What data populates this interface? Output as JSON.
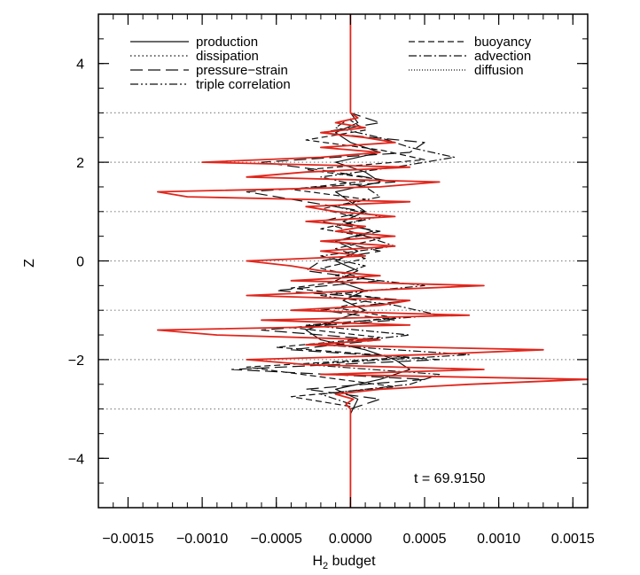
{
  "chart_data": {
    "type": "line",
    "title": "",
    "xlabel": "H",
    "xlabel_sub": "2",
    "xlabel_rest": " budget",
    "ylabel": "Z",
    "xlim": [
      -0.0017,
      0.0016
    ],
    "ylim": [
      -5,
      5
    ],
    "x_ticks": [
      -0.0015,
      -0.001,
      -0.0005,
      0.0,
      0.0005,
      0.001,
      0.0015
    ],
    "x_tick_labels": [
      "−0.0015",
      "−0.0010",
      "−0.0005",
      "0.0000",
      "0.0005",
      "0.0010",
      "0.0015"
    ],
    "y_ticks": [
      -4,
      -2,
      0,
      2,
      4
    ],
    "y_tick_labels": [
      "−4",
      "−2",
      "0",
      "2",
      "4"
    ],
    "reference_lines_z": [
      -3,
      -2,
      -1,
      0,
      1,
      2,
      3
    ],
    "annotation": "t  =  69.9150",
    "legend_placement": "top",
    "legend": {
      "left": [
        {
          "label": "production",
          "dash": "solid"
        },
        {
          "label": "dissipation",
          "dash": "dotted"
        },
        {
          "label": "pressure−strain",
          "dash": "longdash"
        },
        {
          "label": "triple correlation",
          "dash": "dashdotdot"
        }
      ],
      "right": [
        {
          "label": "buoyancy",
          "dash": "dashed"
        },
        {
          "label": "advection",
          "dash": "dashdot"
        },
        {
          "label": "diffusion",
          "dash": "finedot"
        }
      ]
    },
    "total_color": "#e0261c",
    "total_series": {
      "name": "",
      "z": [
        -5.0,
        -3.0,
        -2.9,
        -2.8,
        -2.7,
        -2.6,
        -2.5,
        -2.4,
        -2.3,
        -2.2,
        -2.1,
        -2.0,
        -1.9,
        -1.8,
        -1.7,
        -1.6,
        -1.5,
        -1.4,
        -1.3,
        -1.2,
        -1.1,
        -1.0,
        -0.9,
        -0.8,
        -0.7,
        -0.6,
        -0.5,
        -0.4,
        -0.3,
        -0.2,
        -0.1,
        0.0,
        0.1,
        0.2,
        0.3,
        0.4,
        0.5,
        0.6,
        0.7,
        0.8,
        0.9,
        1.0,
        1.1,
        1.2,
        1.3,
        1.4,
        1.5,
        1.6,
        1.7,
        1.8,
        1.9,
        2.0,
        2.1,
        2.2,
        2.3,
        2.4,
        2.5,
        2.6,
        2.7,
        2.8,
        2.9,
        3.0,
        5.0
      ],
      "x": [
        0.0,
        0.0,
        -3e-05,
        2e-05,
        -0.0001,
        0.0002,
        0.0008,
        0.0016,
        -0.0002,
        0.0009,
        -0.0003,
        -0.0007,
        0.0005,
        0.0013,
        -0.0003,
        0.0002,
        -0.0009,
        -0.0013,
        0.0004,
        -0.0006,
        0.0008,
        -0.0004,
        0.0002,
        0.0004,
        -0.0007,
        0.0001,
        0.0009,
        -0.0004,
        0.0002,
        -0.0002,
        -0.0004,
        -0.0007,
        0.0001,
        -0.0002,
        0.0003,
        -0.0002,
        0.0003,
        -0.0001,
        0.0001,
        -0.0003,
        0.0003,
        -0.0001,
        -0.0003,
        0.0004,
        -0.0011,
        -0.0013,
        0.0002,
        0.0006,
        -0.0007,
        -0.0003,
        0.0004,
        -0.001,
        -0.0002,
        0.0002,
        -0.0002,
        0.0003,
        0.0001,
        -0.0002,
        0.0001,
        -0.0001,
        5e-05,
        0.0,
        0.0
      ]
    },
    "component_series": [
      {
        "name": "",
        "dash": "solid",
        "z": [
          -3.1,
          -2.8,
          -2.6,
          -2.4,
          -2.2,
          -2.0,
          -1.8,
          -1.6,
          -1.4,
          -1.2,
          -1.0,
          -0.8,
          -0.6,
          -0.4,
          -0.2,
          0.0,
          0.2,
          0.4,
          0.6,
          0.8,
          1.0,
          1.2,
          1.4,
          1.6,
          1.8,
          2.0,
          2.2,
          2.4,
          2.6,
          2.8,
          3.0
        ],
        "x": [
          0.0,
          5e-05,
          -0.0001,
          0.0002,
          0.0004,
          0.0003,
          0.0001,
          -0.0002,
          -0.0003,
          -0.0001,
          0.0001,
          -5e-05,
          0.0001,
          -0.0001,
          5e-05,
          -0.0001,
          5e-05,
          -0.0001,
          0.00015,
          -5e-05,
          0.0001,
          0.0,
          -0.0001,
          0.0002,
          0.0001,
          -0.0001,
          0.0002,
          0.0,
          -0.0001,
          5e-05,
          0.0
        ]
      },
      {
        "name": "",
        "dash": "longdash",
        "z": [
          -3.0,
          -2.8,
          -2.6,
          -2.4,
          -2.2,
          -2.0,
          -1.8,
          -1.6,
          -1.4,
          -1.2,
          -1.0,
          -0.8,
          -0.6,
          -0.4,
          -0.2,
          0.0,
          0.2,
          0.4,
          0.6,
          0.8,
          1.0,
          1.2,
          1.4,
          1.6,
          1.8,
          2.0,
          2.2,
          2.4,
          2.6,
          2.8,
          3.0
        ],
        "x": [
          0.0,
          0.0002,
          -0.0003,
          0.0005,
          -0.0008,
          0.0006,
          -0.0004,
          0.0002,
          -0.0006,
          0.0003,
          -0.0002,
          0.0004,
          -0.0005,
          0.0002,
          -0.0003,
          -0.0002,
          0.0002,
          -0.0001,
          0.0002,
          -0.0002,
          0.0001,
          -0.0003,
          -0.0007,
          0.0003,
          -0.0001,
          -0.0006,
          0.0004,
          0.0005,
          -0.0002,
          0.0002,
          0.0
        ]
      },
      {
        "name": "",
        "dash": "dashdot",
        "z": [
          -2.9,
          -2.7,
          -2.5,
          -2.3,
          -2.1,
          -1.9,
          -1.7,
          -1.5,
          -1.3,
          -1.1,
          -0.9,
          -0.7,
          -0.5,
          -0.3,
          -0.1,
          0.1,
          0.3,
          0.5,
          0.7,
          0.9,
          1.1,
          1.3,
          1.5,
          1.7,
          1.9,
          2.1,
          2.3,
          2.5,
          2.7,
          2.9
        ],
        "x": [
          0.0,
          -0.0002,
          0.0004,
          0.0006,
          -0.0003,
          0.0008,
          -0.0002,
          0.0004,
          -0.0003,
          0.0006,
          0.0003,
          -0.0002,
          0.0005,
          -0.0001,
          0.0001,
          -0.0002,
          0.0003,
          0.0001,
          -0.0001,
          0.0002,
          -0.0001,
          0.0002,
          0.0001,
          -0.0002,
          0.0003,
          0.0007,
          0.0004,
          0.0002,
          -0.0001,
          0.0
        ]
      },
      {
        "name": "",
        "dash": "dashed",
        "z": [
          -2.95,
          -2.75,
          -2.55,
          -2.35,
          -2.15,
          -1.95,
          -1.75,
          -1.55,
          -1.35,
          -1.15,
          -0.95,
          -0.75,
          -0.55,
          -0.35,
          -0.15,
          0.05,
          0.25,
          0.45,
          0.65,
          0.85,
          1.05,
          1.25,
          1.45,
          1.65,
          1.85,
          2.05,
          2.25,
          2.45,
          2.65,
          2.85
        ],
        "x": [
          0.0,
          -0.0004,
          0.0003,
          -0.0002,
          -0.0007,
          0.0004,
          -0.0005,
          0.0002,
          -0.0004,
          0.0003,
          -0.0001,
          0.0002,
          -0.0004,
          0.0001,
          -0.0002,
          0.0001,
          -0.0001,
          0.0002,
          -0.0002,
          0.0001,
          -0.0002,
          0.0001,
          -0.0004,
          0.0002,
          -0.0003,
          0.0005,
          0.0002,
          -0.0003,
          0.0001,
          0.0
        ]
      }
    ]
  }
}
